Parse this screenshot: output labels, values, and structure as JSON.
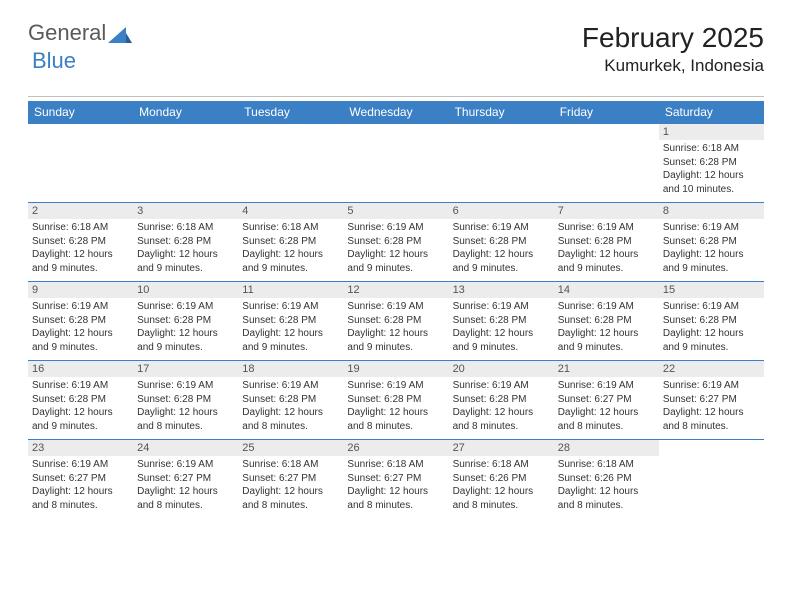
{
  "brand": {
    "word1": "General",
    "word2": "Blue"
  },
  "title": "February 2025",
  "location": "Kumurkek, Indonesia",
  "colors": {
    "header_bar": "#3b7fc4",
    "daynum_bg": "#ececec",
    "text": "#333333",
    "rule": "#bfbfbf"
  },
  "day_labels": [
    "Sunday",
    "Monday",
    "Tuesday",
    "Wednesday",
    "Thursday",
    "Friday",
    "Saturday"
  ],
  "weeks": [
    [
      null,
      null,
      null,
      null,
      null,
      null,
      {
        "n": "1",
        "sr": "Sunrise: 6:18 AM",
        "ss": "Sunset: 6:28 PM",
        "dl1": "Daylight: 12 hours",
        "dl2": "and 10 minutes."
      }
    ],
    [
      {
        "n": "2",
        "sr": "Sunrise: 6:18 AM",
        "ss": "Sunset: 6:28 PM",
        "dl1": "Daylight: 12 hours",
        "dl2": "and 9 minutes."
      },
      {
        "n": "3",
        "sr": "Sunrise: 6:18 AM",
        "ss": "Sunset: 6:28 PM",
        "dl1": "Daylight: 12 hours",
        "dl2": "and 9 minutes."
      },
      {
        "n": "4",
        "sr": "Sunrise: 6:18 AM",
        "ss": "Sunset: 6:28 PM",
        "dl1": "Daylight: 12 hours",
        "dl2": "and 9 minutes."
      },
      {
        "n": "5",
        "sr": "Sunrise: 6:19 AM",
        "ss": "Sunset: 6:28 PM",
        "dl1": "Daylight: 12 hours",
        "dl2": "and 9 minutes."
      },
      {
        "n": "6",
        "sr": "Sunrise: 6:19 AM",
        "ss": "Sunset: 6:28 PM",
        "dl1": "Daylight: 12 hours",
        "dl2": "and 9 minutes."
      },
      {
        "n": "7",
        "sr": "Sunrise: 6:19 AM",
        "ss": "Sunset: 6:28 PM",
        "dl1": "Daylight: 12 hours",
        "dl2": "and 9 minutes."
      },
      {
        "n": "8",
        "sr": "Sunrise: 6:19 AM",
        "ss": "Sunset: 6:28 PM",
        "dl1": "Daylight: 12 hours",
        "dl2": "and 9 minutes."
      }
    ],
    [
      {
        "n": "9",
        "sr": "Sunrise: 6:19 AM",
        "ss": "Sunset: 6:28 PM",
        "dl1": "Daylight: 12 hours",
        "dl2": "and 9 minutes."
      },
      {
        "n": "10",
        "sr": "Sunrise: 6:19 AM",
        "ss": "Sunset: 6:28 PM",
        "dl1": "Daylight: 12 hours",
        "dl2": "and 9 minutes."
      },
      {
        "n": "11",
        "sr": "Sunrise: 6:19 AM",
        "ss": "Sunset: 6:28 PM",
        "dl1": "Daylight: 12 hours",
        "dl2": "and 9 minutes."
      },
      {
        "n": "12",
        "sr": "Sunrise: 6:19 AM",
        "ss": "Sunset: 6:28 PM",
        "dl1": "Daylight: 12 hours",
        "dl2": "and 9 minutes."
      },
      {
        "n": "13",
        "sr": "Sunrise: 6:19 AM",
        "ss": "Sunset: 6:28 PM",
        "dl1": "Daylight: 12 hours",
        "dl2": "and 9 minutes."
      },
      {
        "n": "14",
        "sr": "Sunrise: 6:19 AM",
        "ss": "Sunset: 6:28 PM",
        "dl1": "Daylight: 12 hours",
        "dl2": "and 9 minutes."
      },
      {
        "n": "15",
        "sr": "Sunrise: 6:19 AM",
        "ss": "Sunset: 6:28 PM",
        "dl1": "Daylight: 12 hours",
        "dl2": "and 9 minutes."
      }
    ],
    [
      {
        "n": "16",
        "sr": "Sunrise: 6:19 AM",
        "ss": "Sunset: 6:28 PM",
        "dl1": "Daylight: 12 hours",
        "dl2": "and 9 minutes."
      },
      {
        "n": "17",
        "sr": "Sunrise: 6:19 AM",
        "ss": "Sunset: 6:28 PM",
        "dl1": "Daylight: 12 hours",
        "dl2": "and 8 minutes."
      },
      {
        "n": "18",
        "sr": "Sunrise: 6:19 AM",
        "ss": "Sunset: 6:28 PM",
        "dl1": "Daylight: 12 hours",
        "dl2": "and 8 minutes."
      },
      {
        "n": "19",
        "sr": "Sunrise: 6:19 AM",
        "ss": "Sunset: 6:28 PM",
        "dl1": "Daylight: 12 hours",
        "dl2": "and 8 minutes."
      },
      {
        "n": "20",
        "sr": "Sunrise: 6:19 AM",
        "ss": "Sunset: 6:28 PM",
        "dl1": "Daylight: 12 hours",
        "dl2": "and 8 minutes."
      },
      {
        "n": "21",
        "sr": "Sunrise: 6:19 AM",
        "ss": "Sunset: 6:27 PM",
        "dl1": "Daylight: 12 hours",
        "dl2": "and 8 minutes."
      },
      {
        "n": "22",
        "sr": "Sunrise: 6:19 AM",
        "ss": "Sunset: 6:27 PM",
        "dl1": "Daylight: 12 hours",
        "dl2": "and 8 minutes."
      }
    ],
    [
      {
        "n": "23",
        "sr": "Sunrise: 6:19 AM",
        "ss": "Sunset: 6:27 PM",
        "dl1": "Daylight: 12 hours",
        "dl2": "and 8 minutes."
      },
      {
        "n": "24",
        "sr": "Sunrise: 6:19 AM",
        "ss": "Sunset: 6:27 PM",
        "dl1": "Daylight: 12 hours",
        "dl2": "and 8 minutes."
      },
      {
        "n": "25",
        "sr": "Sunrise: 6:18 AM",
        "ss": "Sunset: 6:27 PM",
        "dl1": "Daylight: 12 hours",
        "dl2": "and 8 minutes."
      },
      {
        "n": "26",
        "sr": "Sunrise: 6:18 AM",
        "ss": "Sunset: 6:27 PM",
        "dl1": "Daylight: 12 hours",
        "dl2": "and 8 minutes."
      },
      {
        "n": "27",
        "sr": "Sunrise: 6:18 AM",
        "ss": "Sunset: 6:26 PM",
        "dl1": "Daylight: 12 hours",
        "dl2": "and 8 minutes."
      },
      {
        "n": "28",
        "sr": "Sunrise: 6:18 AM",
        "ss": "Sunset: 6:26 PM",
        "dl1": "Daylight: 12 hours",
        "dl2": "and 8 minutes."
      },
      null
    ]
  ]
}
